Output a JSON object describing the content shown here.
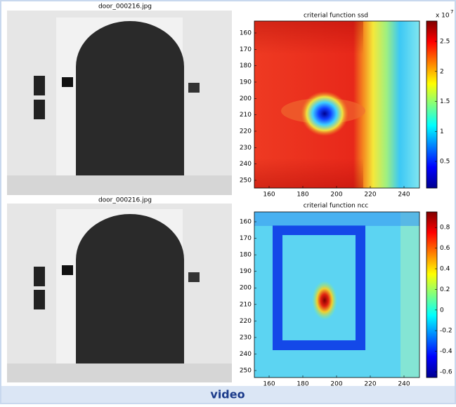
{
  "panels": [
    {
      "title": "door_000216.jpg"
    },
    {
      "title": "criterial function ssd",
      "xticks": [
        160,
        180,
        200,
        220,
        240
      ],
      "yticks": [
        160,
        170,
        180,
        190,
        200,
        210,
        220,
        230,
        240,
        250
      ],
      "colorbar": {
        "ticks": [
          0.5,
          1,
          1.5,
          2,
          2.5
        ],
        "multiplier": "x 10",
        "exponent": "7"
      }
    },
    {
      "title": "door_000216.jpg"
    },
    {
      "title": "criterial function ncc",
      "xticks": [
        160,
        180,
        200,
        220,
        240
      ],
      "yticks": [
        160,
        170,
        180,
        190,
        200,
        210,
        220,
        230,
        240,
        250
      ],
      "colorbar": {
        "ticks": [
          -0.6,
          -0.4,
          -0.2,
          0,
          0.2,
          0.4,
          0.6,
          0.8
        ]
      }
    }
  ],
  "footer": "video"
}
